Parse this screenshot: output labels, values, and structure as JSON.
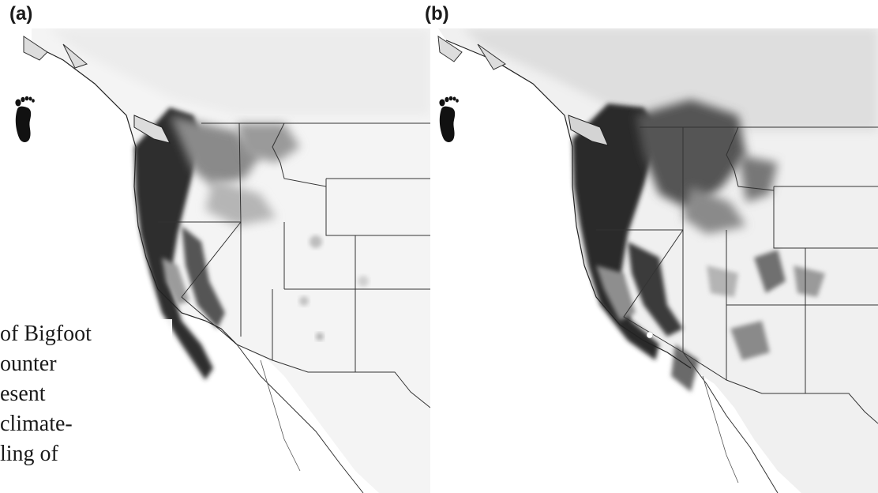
{
  "panels": [
    {
      "label": "(a)"
    },
    {
      "label": "(b)"
    }
  ],
  "caption_fragment": [
    "of Bigfoot",
    "ounter",
    "esent",
    "climate-",
    "ling of"
  ],
  "icons": [
    "footprint-icon",
    "footprint-icon"
  ],
  "colors": {
    "high_suitability": "#2b2b2b",
    "medium_suitability": "#777777",
    "low_suitability": "#c8c8c8",
    "background": "#ffffff",
    "state_border": "#333333"
  }
}
